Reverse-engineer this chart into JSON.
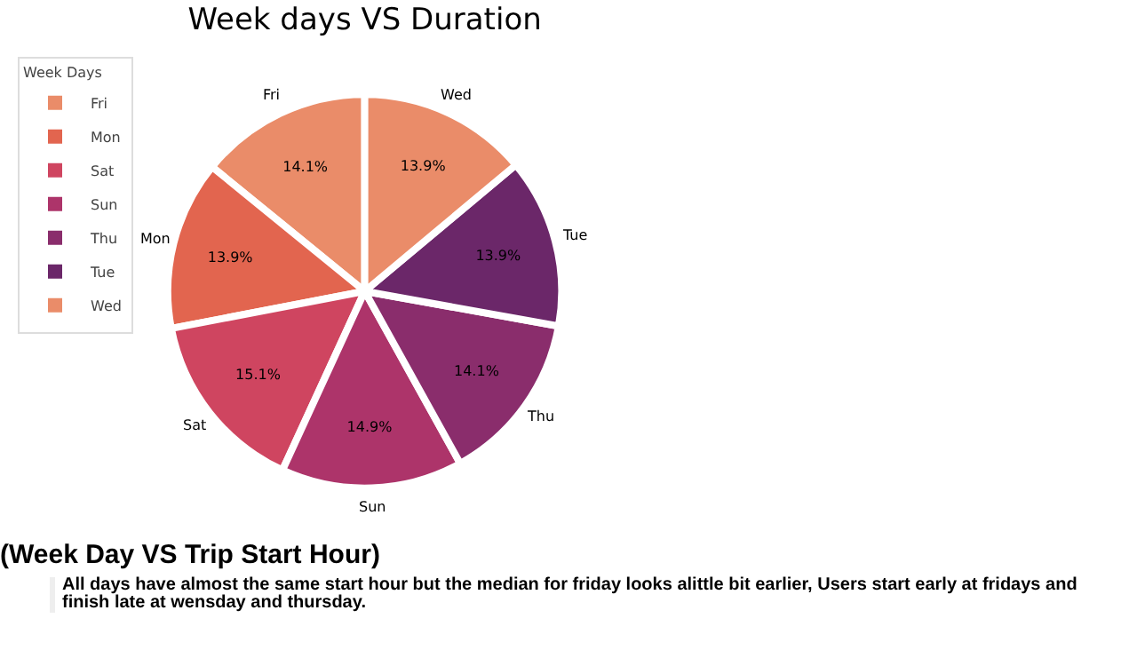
{
  "chart_data": {
    "type": "pie",
    "title": "Week days VS Duration",
    "legend_title": "Week Days",
    "legend": "top left",
    "categories": [
      "Fri",
      "Mon",
      "Sat",
      "Sun",
      "Thu",
      "Tue",
      "Wed"
    ],
    "values": [
      14.1,
      13.9,
      15.1,
      14.9,
      14.1,
      13.9,
      13.9
    ],
    "value_labels": [
      "14.1%",
      "13.9%",
      "15.1%",
      "14.9%",
      "14.1%",
      "13.9%",
      "13.9%"
    ],
    "colors": [
      "#ea8c69",
      "#e2654f",
      "#cf4560",
      "#ad346a",
      "#8a2d6c",
      "#6b2769",
      "#ea8c69"
    ],
    "annotations": [
      "(Week Day VS Trip Start Hour)",
      "All days have almost the same start hour but the median for friday looks alittle bit earlier, Users start early at fridays and finish late at wensday and thursday."
    ]
  }
}
